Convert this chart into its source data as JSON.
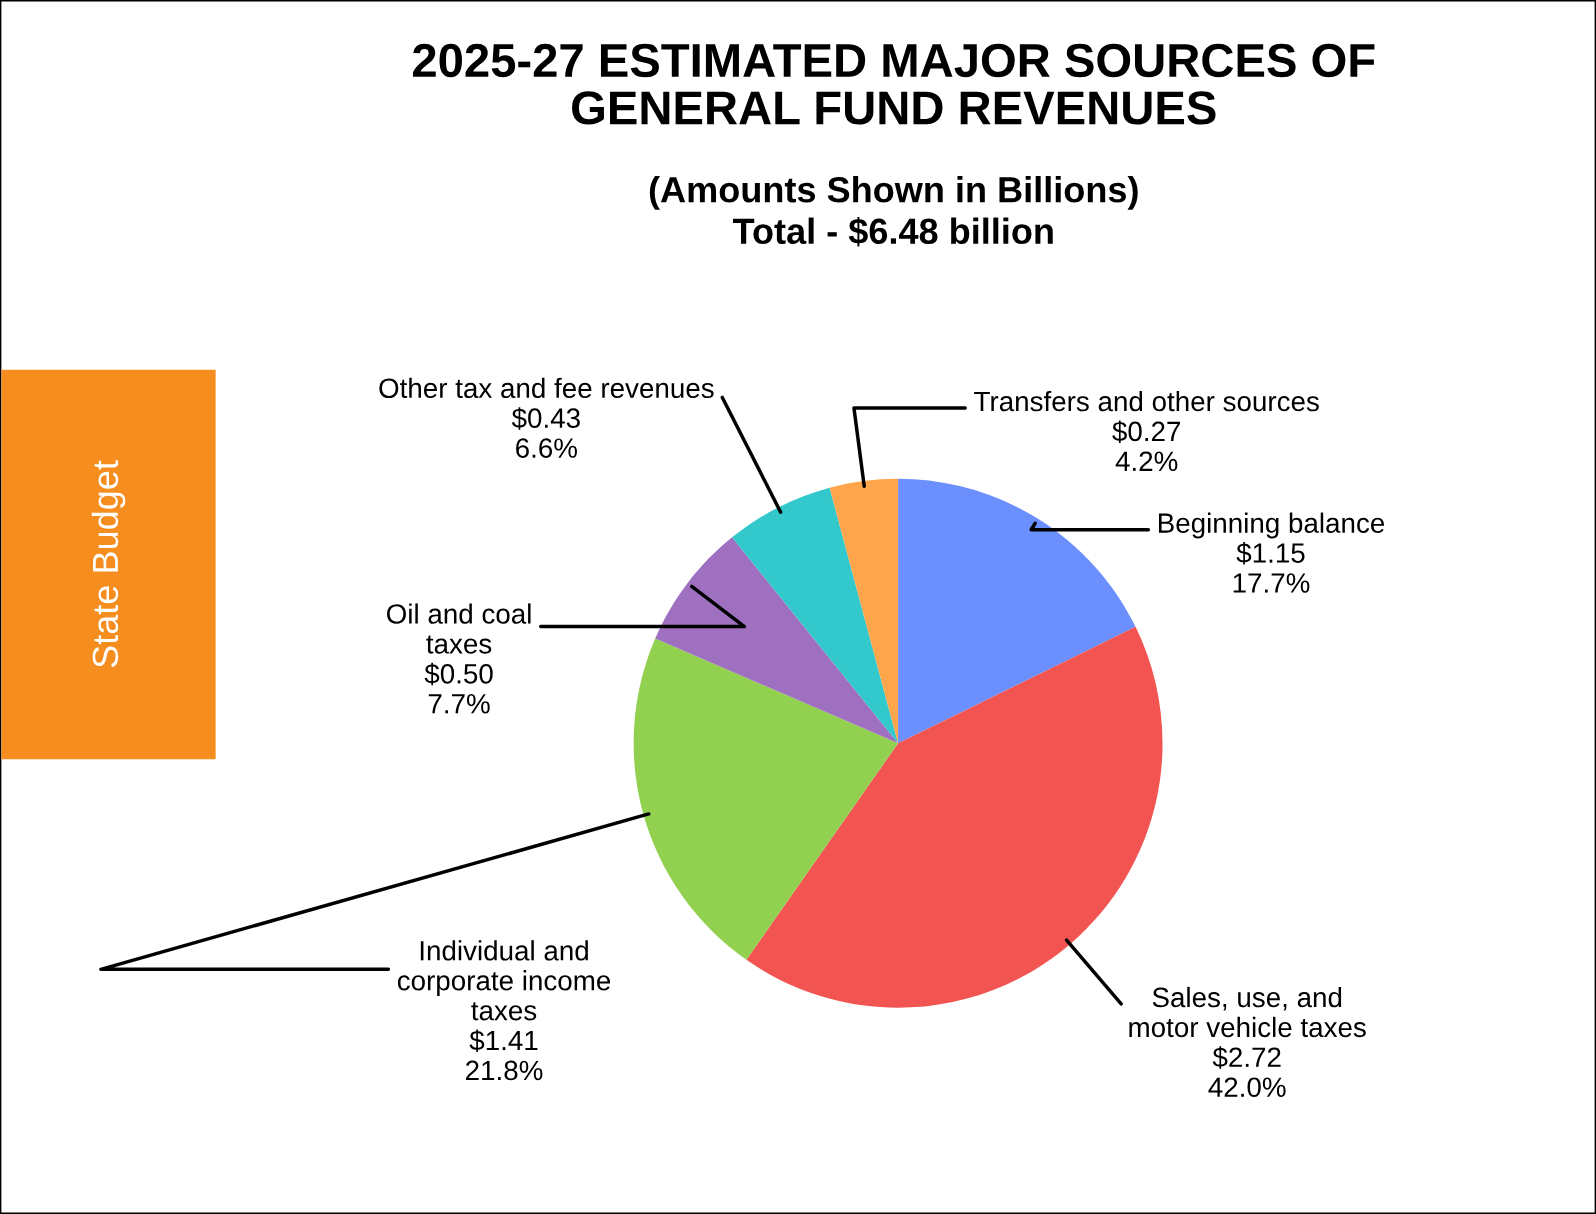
{
  "chart_data": {
    "type": "pie",
    "title": "2025-27 ESTIMATED MAJOR SOURCES OF\nGENERAL FUND REVENUES",
    "subtitle": "(Amounts Shown in Billions)\nTotal - $6.48 billion",
    "categories": [
      "Beginning balance",
      "Sales, use, and\nmotor vehicle taxes",
      "Individual and\ncorporate income\ntaxes",
      "Oil and coal\ntaxes",
      "Other tax and fee revenues",
      "Transfers and other sources"
    ],
    "values": [
      1.15,
      2.72,
      1.41,
      0.5,
      0.43,
      0.27
    ],
    "value_labels": [
      "$1.15\n17.7%",
      "$2.72\n42.0%",
      "$1.41\n21.8%",
      "$0.50\n7.7%",
      "$0.43\n6.6%",
      "$0.27\n4.2%"
    ],
    "colors": [
      "#6b8ffd",
      "#f25451",
      "#92d050",
      "#a070c0",
      "#33c8cc",
      "#ffa64d"
    ],
    "annotations": [
      "State Budget"
    ],
    "legend": false
  }
}
